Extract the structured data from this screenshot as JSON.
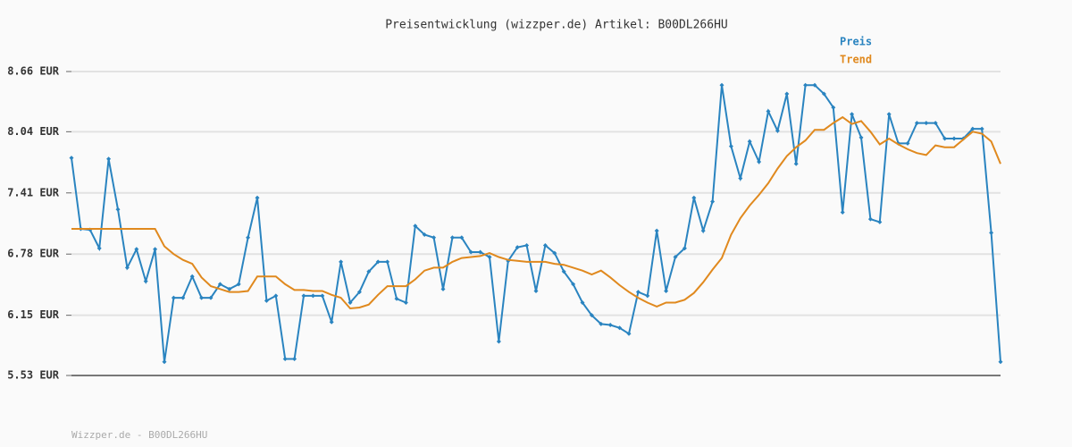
{
  "chart_data": {
    "type": "line",
    "title": "Preisentwicklung (wizzper.de) Artikel: B00DL266HU",
    "footer": "Wizzper.de - B00DL266HU",
    "ylim": [
      5.53,
      8.66
    ],
    "yticks": [
      {
        "value": 5.53,
        "label": "5.53 EUR"
      },
      {
        "value": 6.15,
        "label": "6.15 EUR"
      },
      {
        "value": 6.78,
        "label": "6.78 EUR"
      },
      {
        "value": 7.41,
        "label": "7.41 EUR"
      },
      {
        "value": 8.04,
        "label": "8.04 EUR"
      },
      {
        "value": 8.66,
        "label": "8.66 EUR"
      }
    ],
    "grid": true,
    "legend": "top-right",
    "series": [
      {
        "name": "Preis",
        "color": "#2a84c0",
        "markers": true,
        "values": [
          7.77,
          7.04,
          7.03,
          6.84,
          7.76,
          7.24,
          6.64,
          6.83,
          6.5,
          6.83,
          5.67,
          6.33,
          6.33,
          6.55,
          6.33,
          6.33,
          6.47,
          6.42,
          6.47,
          6.95,
          7.36,
          6.3,
          6.35,
          5.7,
          5.7,
          6.35,
          6.35,
          6.35,
          6.08,
          6.7,
          6.28,
          6.39,
          6.6,
          6.7,
          6.7,
          6.32,
          6.28,
          7.07,
          6.98,
          6.95,
          6.42,
          6.95,
          6.95,
          6.8,
          6.8,
          6.75,
          5.88,
          6.71,
          6.85,
          6.87,
          6.4,
          6.87,
          6.79,
          6.6,
          6.47,
          6.28,
          6.15,
          6.06,
          6.05,
          6.02,
          5.96,
          6.39,
          6.35,
          7.02,
          6.4,
          6.75,
          6.84,
          7.36,
          7.02,
          7.32,
          8.52,
          7.89,
          7.56,
          7.94,
          7.73,
          8.25,
          8.05,
          8.43,
          7.71,
          8.52,
          8.52,
          8.43,
          8.29,
          7.21,
          8.22,
          7.98,
          7.14,
          7.11,
          8.22,
          7.92,
          7.92,
          8.13,
          8.13,
          8.13,
          7.97,
          7.97,
          7.97,
          8.07,
          8.07,
          7.0,
          5.67
        ]
      },
      {
        "name": "Trend",
        "color": "#e0891e",
        "markers": false,
        "values": [
          7.04,
          7.04,
          7.04,
          7.04,
          7.04,
          7.04,
          7.04,
          7.04,
          7.04,
          7.04,
          6.86,
          6.78,
          6.72,
          6.68,
          6.54,
          6.45,
          6.42,
          6.39,
          6.39,
          6.4,
          6.55,
          6.55,
          6.55,
          6.47,
          6.41,
          6.41,
          6.4,
          6.4,
          6.36,
          6.33,
          6.22,
          6.23,
          6.26,
          6.36,
          6.45,
          6.45,
          6.45,
          6.52,
          6.61,
          6.64,
          6.64,
          6.7,
          6.74,
          6.75,
          6.76,
          6.79,
          6.75,
          6.72,
          6.71,
          6.7,
          6.7,
          6.7,
          6.68,
          6.67,
          6.64,
          6.61,
          6.57,
          6.61,
          6.54,
          6.46,
          6.39,
          6.33,
          6.28,
          6.24,
          6.28,
          6.28,
          6.31,
          6.38,
          6.49,
          6.62,
          6.74,
          6.98,
          7.15,
          7.28,
          7.39,
          7.51,
          7.66,
          7.79,
          7.88,
          7.95,
          8.06,
          8.06,
          8.13,
          8.19,
          8.12,
          8.15,
          8.04,
          7.91,
          7.97,
          7.91,
          7.86,
          7.82,
          7.8,
          7.9,
          7.88,
          7.88,
          7.96,
          8.04,
          8.02,
          7.94,
          7.71
        ]
      }
    ]
  }
}
